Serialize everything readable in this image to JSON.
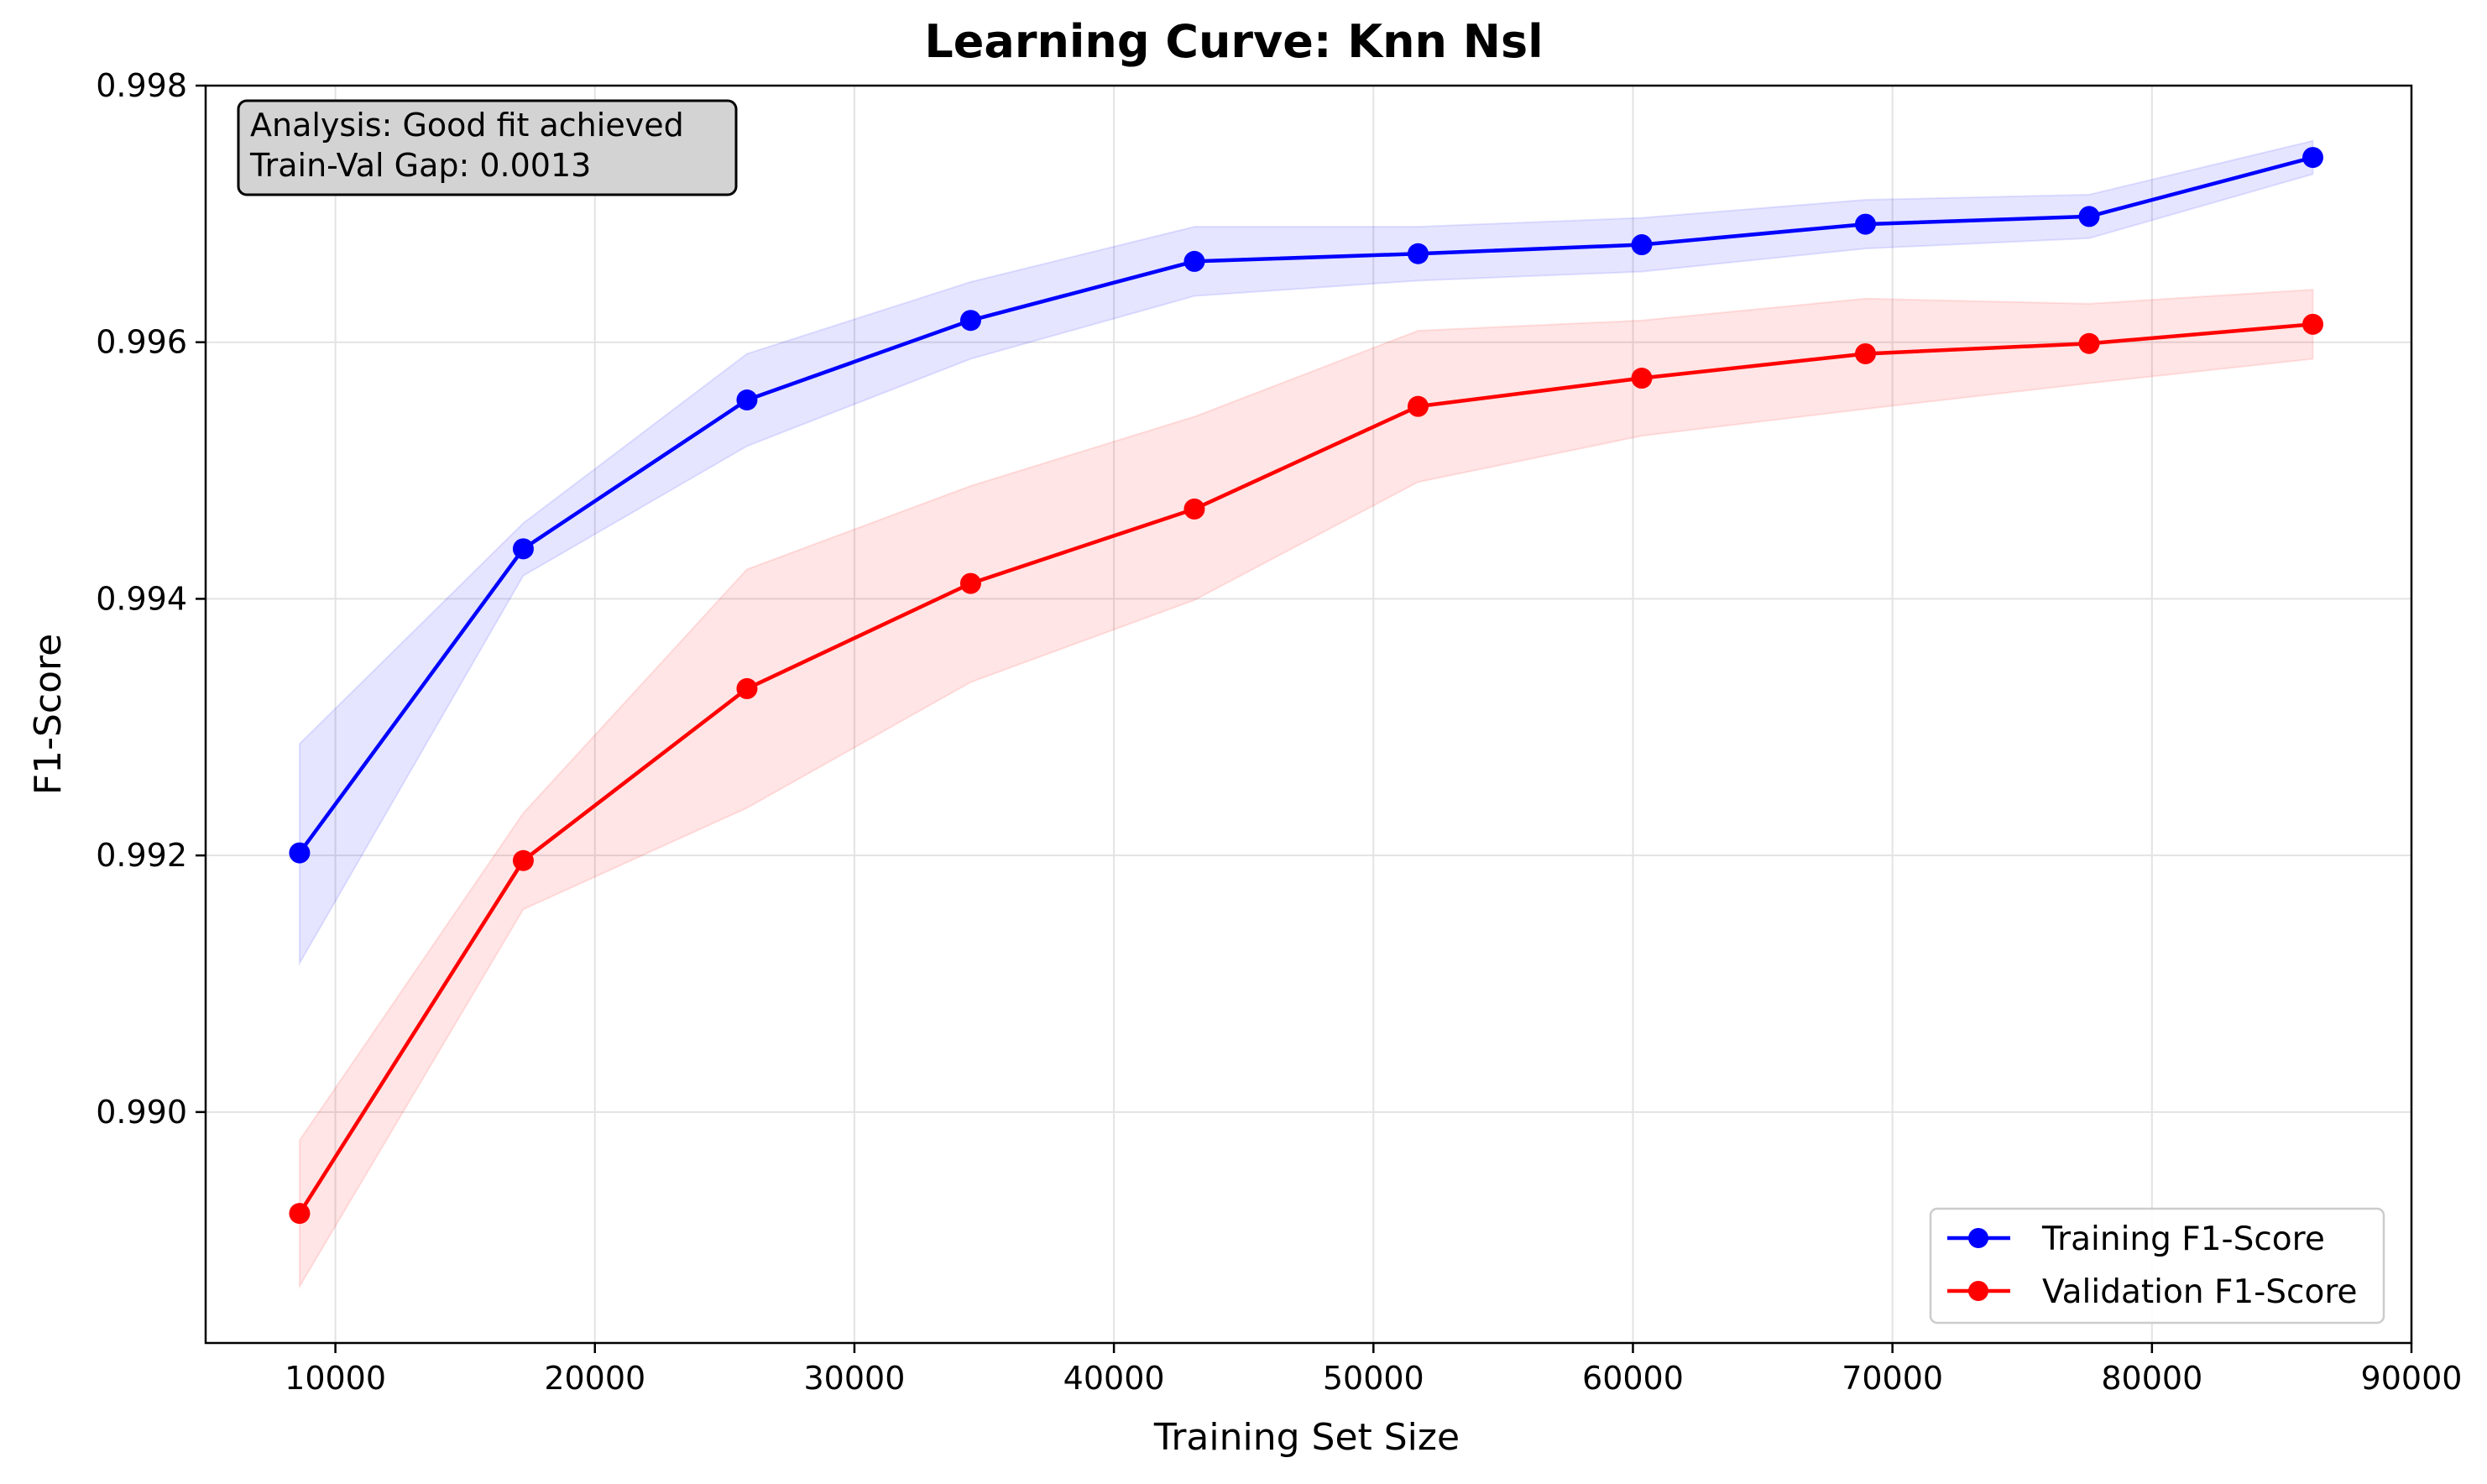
{
  "chart_data": {
    "type": "line",
    "title": "Learning Curve: Knn Nsl",
    "xlabel": "Training Set Size",
    "ylabel": "F1-Score",
    "xlim": [
      5000,
      90000
    ],
    "ylim": [
      0.9882,
      0.998
    ],
    "x_ticks": [
      10000,
      20000,
      30000,
      40000,
      50000,
      60000,
      70000,
      80000,
      90000
    ],
    "x_tick_labels": [
      "10000",
      "20000",
      "30000",
      "40000",
      "50000",
      "60000",
      "70000",
      "80000",
      "90000"
    ],
    "y_ticks": [
      0.99,
      0.992,
      0.994,
      0.996,
      0.998
    ],
    "y_tick_labels": [
      "0.990",
      "0.992",
      "0.994",
      "0.996",
      "0.998"
    ],
    "grid": true,
    "legend_position": "lower-right",
    "x": [
      8620,
      17240,
      25860,
      34480,
      43100,
      51720,
      60340,
      68960,
      77580,
      86200
    ],
    "series": [
      {
        "name": "Training F1-Score",
        "color": "#0000ff",
        "fill_color": "#0000ff",
        "values": [
          0.99202,
          0.99439,
          0.99555,
          0.99617,
          0.99663,
          0.99669,
          0.99676,
          0.99692,
          0.99698,
          0.99744
        ],
        "lower": [
          0.99116,
          0.99418,
          0.99519,
          0.99587,
          0.99636,
          0.99648,
          0.99655,
          0.99673,
          0.99681,
          0.99731
        ],
        "upper": [
          0.99287,
          0.99459,
          0.99591,
          0.99647,
          0.9969,
          0.9969,
          0.99697,
          0.99711,
          0.99715,
          0.99757
        ],
        "marker": "circle"
      },
      {
        "name": "Validation F1-Score",
        "color": "#ff0000",
        "fill_color": "#ff0000",
        "values": [
          0.98921,
          0.99196,
          0.9933,
          0.99412,
          0.9947,
          0.9955,
          0.99572,
          0.99591,
          0.99599,
          0.99614
        ],
        "lower": [
          0.98864,
          0.99158,
          0.99237,
          0.99335,
          0.99399,
          0.99491,
          0.99527,
          0.99548,
          0.99568,
          0.99587
        ],
        "upper": [
          0.98978,
          0.99233,
          0.99423,
          0.99488,
          0.99542,
          0.99609,
          0.99617,
          0.99634,
          0.9963,
          0.99641
        ],
        "marker": "circle"
      }
    ],
    "annotation": {
      "lines": [
        "Analysis: Good fit achieved",
        "Train-Val Gap: 0.0013"
      ],
      "position": "top-left",
      "background": "#d3d3d3"
    }
  }
}
